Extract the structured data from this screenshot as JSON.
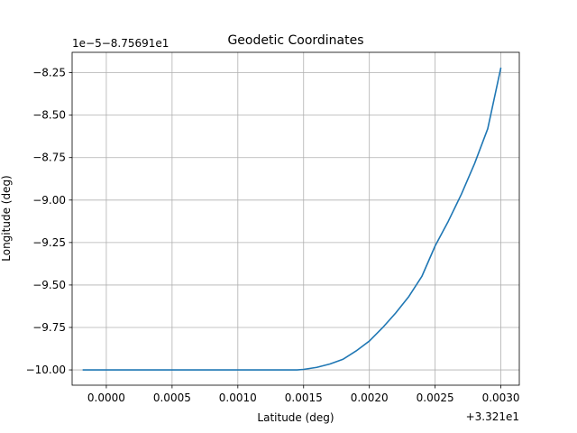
{
  "chart_data": {
    "type": "line",
    "title": "Geodetic Coordinates",
    "xlabel": "Latitude (deg)",
    "ylabel": "Longitude (deg)",
    "x_offset_label": "+3.321e1",
    "y_offset_label": "1e−5−8.75691e1",
    "x_ticks": [
      0.0,
      0.0005,
      0.001,
      0.0015,
      0.002,
      0.0025,
      0.003
    ],
    "x_tick_labels": [
      "0.0000",
      "0.0005",
      "0.0010",
      "0.0015",
      "0.0020",
      "0.0025",
      "0.0030"
    ],
    "y_ticks": [
      -10.0,
      -9.75,
      -9.5,
      -9.25,
      -9.0,
      -8.75,
      -8.5,
      -8.25
    ],
    "y_tick_labels": [
      "−10.00",
      "−9.75",
      "−9.50",
      "−9.25",
      "−9.00",
      "−8.75",
      "−8.50",
      "−8.25"
    ],
    "xlim": [
      -0.00026,
      0.00314
    ],
    "ylim": [
      -10.09,
      -8.13
    ],
    "grid": true,
    "series": [
      {
        "color": "#1f77b4",
        "x": [
          -0.00018,
          0.0,
          0.0005,
          0.001,
          0.00145,
          0.0015,
          0.0016,
          0.0017,
          0.0018,
          0.0019,
          0.002,
          0.0021,
          0.0022,
          0.0023,
          0.0024,
          0.0025,
          0.0026,
          0.0027,
          0.0028,
          0.0029,
          0.003
        ],
        "y": [
          -10.0,
          -10.0,
          -10.0,
          -10.0,
          -10.0,
          -9.997,
          -9.985,
          -9.965,
          -9.937,
          -9.888,
          -9.83,
          -9.752,
          -9.665,
          -9.568,
          -9.448,
          -9.27,
          -9.125,
          -8.965,
          -8.785,
          -8.58,
          -8.22
        ]
      }
    ]
  }
}
